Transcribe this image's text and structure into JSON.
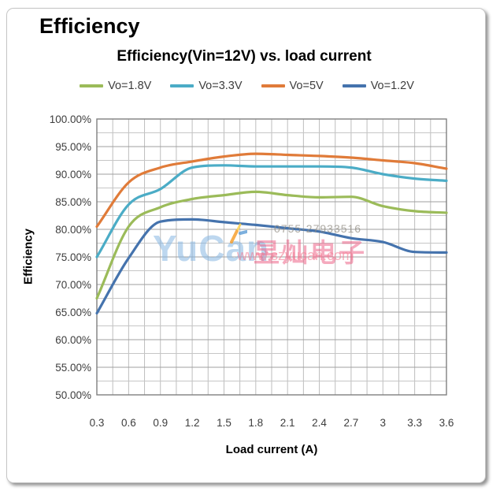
{
  "page": {
    "heading": "Efficiency"
  },
  "chart_data": {
    "type": "line",
    "title": "Efficiency(Vin=12V) vs. load current",
    "xlabel": "Load current (A)",
    "ylabel": "Efficiency",
    "x": [
      0.3,
      0.6,
      0.9,
      1.2,
      1.5,
      1.8,
      2.1,
      2.4,
      2.7,
      3.0,
      3.3,
      3.6
    ],
    "x_tick_labels": [
      "0.3",
      "0.6",
      "0.9",
      "1.2",
      "1.5",
      "1.8",
      "2.1",
      "2.4",
      "2.7",
      "3",
      "3.3",
      "3.6"
    ],
    "y_tick_labels": [
      "100.00%",
      "95.00%",
      "90.00%",
      "85.00%",
      "80.00%",
      "75.00%",
      "70.00%",
      "65.00%",
      "60.00%",
      "55.00%",
      "50.00%"
    ],
    "ylim": [
      50,
      100
    ],
    "xlim": [
      0.3,
      3.6
    ],
    "y_major_step": 5,
    "y_minor_step": 2.5,
    "x_minor_step": 0.15,
    "grid": "major and minor gridlines shown",
    "legend_position": "top",
    "series": [
      {
        "name": "Vo=1.8V",
        "color": "#9BBB59",
        "values": [
          67.5,
          80.5,
          84.0,
          85.5,
          86.2,
          86.8,
          86.2,
          85.8,
          85.9,
          84.2,
          83.3,
          83.0
        ]
      },
      {
        "name": "Vo=3.3V",
        "color": "#4BACC6",
        "values": [
          75.0,
          84.5,
          87.3,
          91.2,
          91.6,
          91.4,
          91.4,
          91.4,
          91.2,
          90.0,
          89.2,
          88.8
        ]
      },
      {
        "name": "Vo=5V",
        "color": "#E07B39",
        "values": [
          80.5,
          88.5,
          91.2,
          92.3,
          93.2,
          93.7,
          93.5,
          93.3,
          93.0,
          92.5,
          92.0,
          91.0
        ]
      },
      {
        "name": "Vo=1.2V",
        "color": "#4573AD",
        "values": [
          64.8,
          74.8,
          81.4,
          81.8,
          81.3,
          80.8,
          80.2,
          79.6,
          78.4,
          77.7,
          75.9,
          75.8
        ]
      }
    ]
  },
  "watermark": {
    "brand": "YuCan",
    "brand_cn": "昱灿电子",
    "url": "www.szyucan.com",
    "phone": "0755-27933516"
  }
}
